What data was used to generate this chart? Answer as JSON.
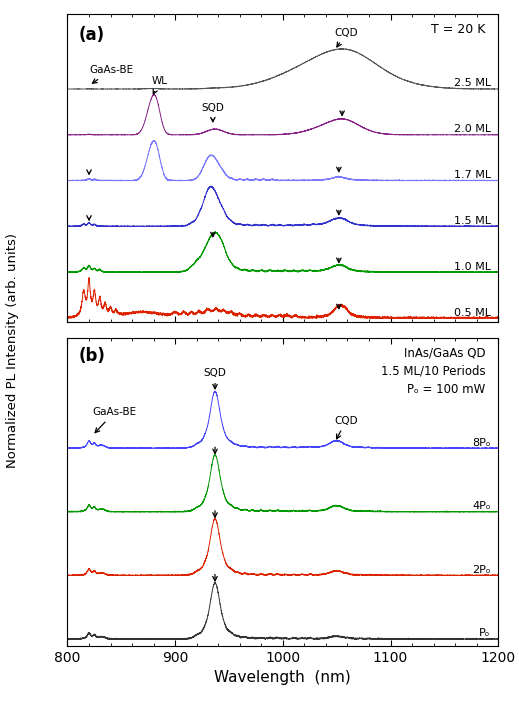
{
  "xlim": [
    800,
    1200
  ],
  "xlabel": "Wavelength  (nm)",
  "ylabel": "Normalized PL Intensity (arb. units)",
  "panel_a_label": "(a)",
  "panel_b_label": "(b)",
  "T_label": "T = 20 K",
  "info_label": "InAs/GaAs QD\n1.5 ML/10 Periods\nPₒ = 100 mW",
  "spectra_a": {
    "labels": [
      "2.5 ML",
      "2.0 ML",
      "1.7 ML",
      "1.5 ML",
      "1.0 ML",
      "0.5 ML"
    ],
    "colors": [
      "#555555",
      "#882288",
      "#7777ff",
      "#3333cc",
      "#009900",
      "#dd2200"
    ],
    "offsets": [
      0.83,
      0.665,
      0.5,
      0.335,
      0.17,
      0.005
    ]
  },
  "spectra_b": {
    "labels": [
      "8Pₒ",
      "4Pₒ",
      "2Pₒ",
      "Pₒ"
    ],
    "colors": [
      "#4444ff",
      "#009900",
      "#dd2200",
      "#333333"
    ],
    "offsets": [
      0.57,
      0.38,
      0.19,
      0.0
    ]
  }
}
